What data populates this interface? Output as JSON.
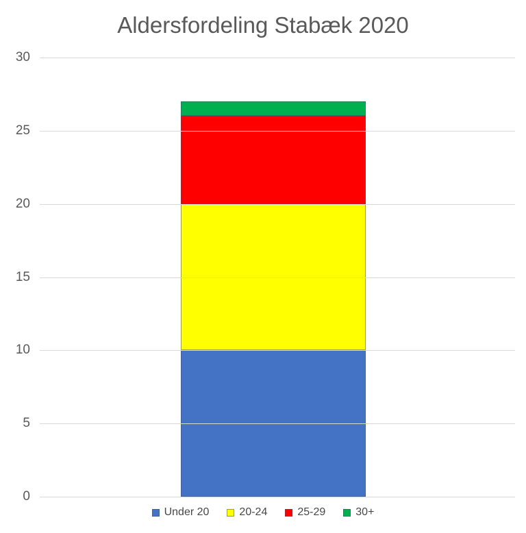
{
  "chart_data": {
    "type": "bar",
    "stacked": true,
    "title": "Aldersfordeling Stabæk 2020",
    "categories": [
      ""
    ],
    "series": [
      {
        "name": "Under 20",
        "values": [
          10
        ],
        "color": "#4472C4"
      },
      {
        "name": "20-24",
        "values": [
          10
        ],
        "color": "#FFFF00"
      },
      {
        "name": "25-29",
        "values": [
          6
        ],
        "color": "#FF0000"
      },
      {
        "name": "30+",
        "values": [
          1
        ],
        "color": "#00B050"
      }
    ],
    "stack_total": 27,
    "xlabel": "",
    "ylabel": "",
    "ylim": [
      0,
      30
    ],
    "yticks": [
      0,
      5,
      10,
      15,
      20,
      25,
      30
    ],
    "grid": true,
    "legend_position": "bottom",
    "colors": {
      "title_text": "#595959",
      "axis_text": "#595959",
      "legend_text": "#474747",
      "gridline": "#D9D9D9",
      "segment_border": "#44546A",
      "background": "#FFFFFF"
    }
  }
}
